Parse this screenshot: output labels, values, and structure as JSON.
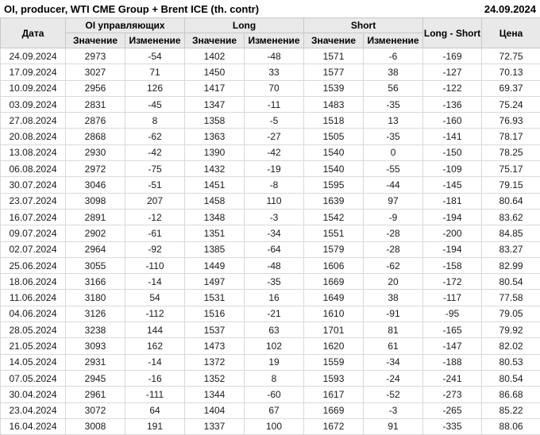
{
  "chart_data": {
    "type": "table",
    "title": "OI, producer, WTI CME Group + Brent ICE (th. contr)",
    "report_date": "24.09.2024",
    "header": {
      "date": "Дата",
      "groups": [
        {
          "label": "OI управляющих",
          "sub": [
            "Значение",
            "Изменение"
          ]
        },
        {
          "label": "Long",
          "sub": [
            "Значение",
            "Изменение"
          ]
        },
        {
          "label": "Short",
          "sub": [
            "Значение",
            "Изменение"
          ]
        }
      ],
      "long_short": "Long - Short",
      "price": "Цена"
    },
    "rows": [
      [
        "24.09.2024",
        "2973",
        "-54",
        "1402",
        "-48",
        "1571",
        "-6",
        "-169",
        "72.75"
      ],
      [
        "17.09.2024",
        "3027",
        "71",
        "1450",
        "33",
        "1577",
        "38",
        "-127",
        "70.13"
      ],
      [
        "10.09.2024",
        "2956",
        "126",
        "1417",
        "70",
        "1539",
        "56",
        "-122",
        "69.37"
      ],
      [
        "03.09.2024",
        "2831",
        "-45",
        "1347",
        "-11",
        "1483",
        "-35",
        "-136",
        "75.24"
      ],
      [
        "27.08.2024",
        "2876",
        "8",
        "1358",
        "-5",
        "1518",
        "13",
        "-160",
        "76.93"
      ],
      [
        "20.08.2024",
        "2868",
        "-62",
        "1363",
        "-27",
        "1505",
        "-35",
        "-141",
        "78.17"
      ],
      [
        "13.08.2024",
        "2930",
        "-42",
        "1390",
        "-42",
        "1540",
        "0",
        "-150",
        "78.25"
      ],
      [
        "06.08.2024",
        "2972",
        "-75",
        "1432",
        "-19",
        "1540",
        "-55",
        "-109",
        "75.17"
      ],
      [
        "30.07.2024",
        "3046",
        "-51",
        "1451",
        "-8",
        "1595",
        "-44",
        "-145",
        "79.15"
      ],
      [
        "23.07.2024",
        "3098",
        "207",
        "1458",
        "110",
        "1639",
        "97",
        "-181",
        "80.64"
      ],
      [
        "16.07.2024",
        "2891",
        "-12",
        "1348",
        "-3",
        "1542",
        "-9",
        "-194",
        "83.62"
      ],
      [
        "09.07.2024",
        "2902",
        "-61",
        "1351",
        "-34",
        "1551",
        "-28",
        "-200",
        "84.85"
      ],
      [
        "02.07.2024",
        "2964",
        "-92",
        "1385",
        "-64",
        "1579",
        "-28",
        "-194",
        "83.27"
      ],
      [
        "25.06.2024",
        "3055",
        "-110",
        "1449",
        "-48",
        "1606",
        "-62",
        "-158",
        "82.99"
      ],
      [
        "18.06.2024",
        "3166",
        "-14",
        "1497",
        "-35",
        "1669",
        "20",
        "-172",
        "80.54"
      ],
      [
        "11.06.2024",
        "3180",
        "54",
        "1531",
        "16",
        "1649",
        "38",
        "-117",
        "77.58"
      ],
      [
        "04.06.2024",
        "3126",
        "-112",
        "1516",
        "-21",
        "1610",
        "-91",
        "-95",
        "79.05"
      ],
      [
        "28.05.2024",
        "3238",
        "144",
        "1537",
        "63",
        "1701",
        "81",
        "-165",
        "79.92"
      ],
      [
        "21.05.2024",
        "3093",
        "162",
        "1473",
        "102",
        "1620",
        "61",
        "-147",
        "82.02"
      ],
      [
        "14.05.2024",
        "2931",
        "-14",
        "1372",
        "19",
        "1559",
        "-34",
        "-188",
        "80.53"
      ],
      [
        "07.05.2024",
        "2945",
        "-16",
        "1352",
        "8",
        "1593",
        "-24",
        "-241",
        "80.54"
      ],
      [
        "30.04.2024",
        "2961",
        "-111",
        "1344",
        "-60",
        "1617",
        "-52",
        "-273",
        "86.68"
      ],
      [
        "23.04.2024",
        "3072",
        "64",
        "1404",
        "67",
        "1669",
        "-3",
        "-265",
        "85.22"
      ],
      [
        "16.04.2024",
        "3008",
        "191",
        "1337",
        "100",
        "1672",
        "91",
        "-335",
        "88.06"
      ]
    ],
    "layout": {
      "change_color_rule": "positive green, zero or negative red",
      "grid": true
    }
  },
  "colors": {
    "positive": "#008f00",
    "negative": "#cc0000",
    "header_bg": "#e9e9e9",
    "border": "#d9d9d9"
  }
}
